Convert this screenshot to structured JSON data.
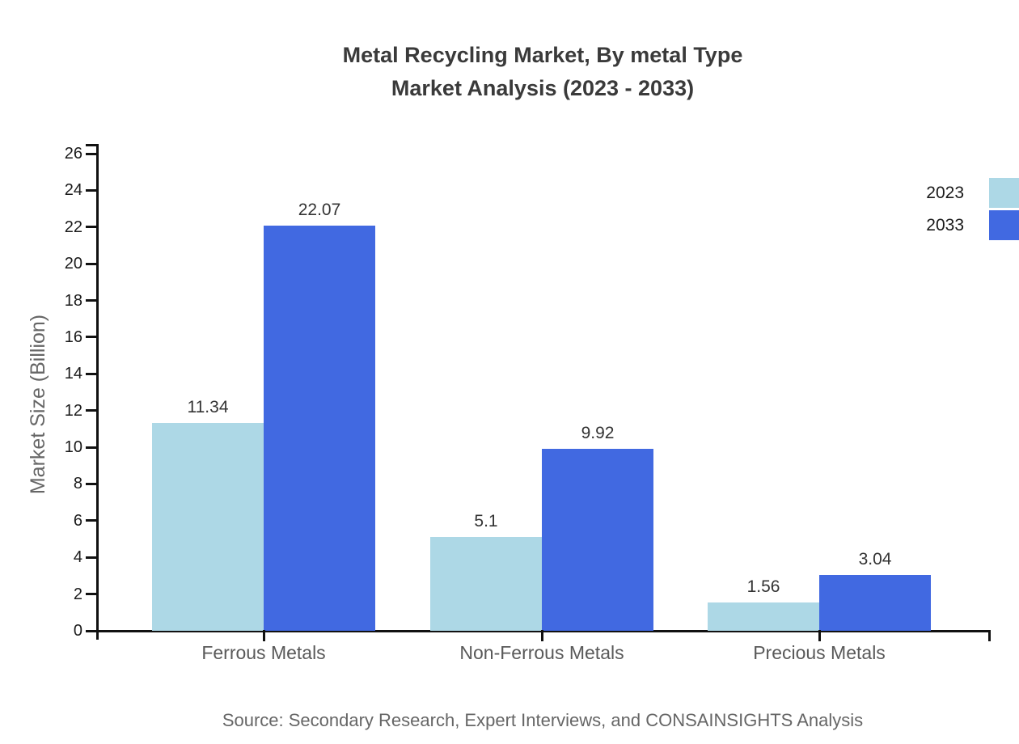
{
  "title": {
    "line1": "Metal Recycling Market, By metal Type",
    "line2": "Market Analysis (2023 - 2033)"
  },
  "source": "Source: Secondary Research, Expert Interviews, and CONSAINSIGHTS Analysis",
  "colors": {
    "series_2023": "#ADD8E6",
    "series_2033": "#4169E1",
    "axis": "#111111",
    "title_text": "#3a3a3a",
    "muted_text": "#666666"
  },
  "chart_data": {
    "type": "bar",
    "title": "Metal Recycling Market, By metal Type Market Analysis (2023 - 2033)",
    "categories": [
      "Ferrous Metals",
      "Non-Ferrous Metals",
      "Precious Metals"
    ],
    "series": [
      {
        "name": "2023",
        "color": "#ADD8E6",
        "values": [
          11.34,
          5.1,
          1.56
        ],
        "labels": [
          "11.34",
          "5.1",
          "1.56"
        ]
      },
      {
        "name": "2033",
        "color": "#4169E1",
        "values": [
          22.07,
          9.92,
          3.04
        ],
        "labels": [
          "22.07",
          "9.92",
          "3.04"
        ]
      }
    ],
    "xlabel": "",
    "ylabel": "Market Size (Billion)",
    "ylim": [
      0,
      26
    ],
    "yticks": [
      0,
      2,
      4,
      6,
      8,
      10,
      12,
      14,
      16,
      18,
      20,
      22,
      24,
      26
    ],
    "grid": false,
    "legend_position": "right-top",
    "value_labels_shown": true
  }
}
